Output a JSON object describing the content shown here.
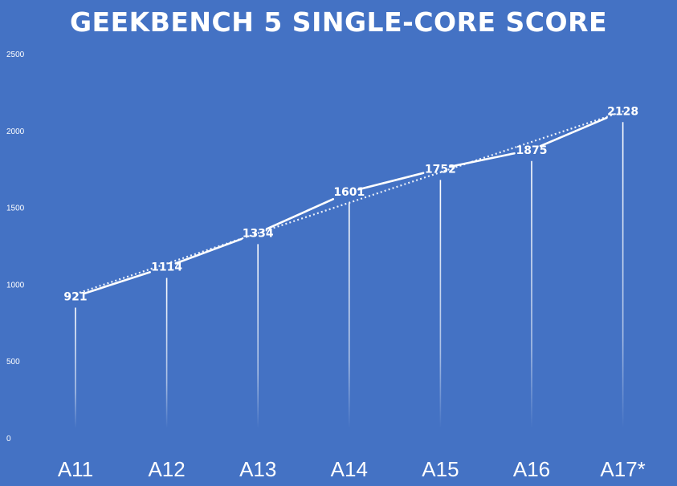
{
  "chart_data": {
    "type": "line",
    "title": "GEEKBENCH 5 SINGLE-CORE SCORE",
    "xlabel": "",
    "ylabel": "",
    "categories": [
      "A11",
      "A12",
      "A13",
      "A14",
      "A15",
      "A16",
      "A17*"
    ],
    "series": [
      {
        "values": [
          921,
          1114,
          1334,
          1601,
          1752,
          1875,
          2128
        ]
      }
    ],
    "trendline": {
      "style": "dotted",
      "kind": "linear"
    },
    "drop_lines": true,
    "ylim": [
      0,
      2500
    ],
    "yticks": [
      0,
      500,
      1000,
      1500,
      2000,
      2500
    ],
    "ytick_labels": [
      "0",
      "500",
      "1000",
      "1500",
      "2000",
      "2500"
    ],
    "grid": false,
    "legend": "none",
    "colors": {
      "background": "#4472c4",
      "line": "#ffffff",
      "text": "#ffffff"
    }
  }
}
